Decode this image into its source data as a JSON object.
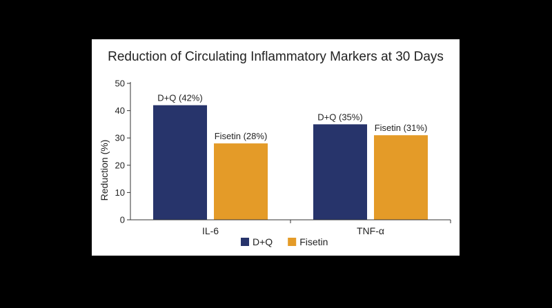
{
  "chart_data": {
    "type": "bar",
    "title": "Reduction of Circulating Inflammatory Markers at 30 Days",
    "xlabel": "",
    "ylabel": "Reduction (%)",
    "categories": [
      "IL-6",
      "TNF-α"
    ],
    "ylim": [
      0,
      50
    ],
    "yticks": [
      0,
      10,
      20,
      30,
      40,
      50
    ],
    "grid": false,
    "legend": "bottom",
    "series": [
      {
        "name": "D+Q",
        "values": [
          42,
          35
        ],
        "color": "#27346b",
        "labels": [
          "D+Q (42%)",
          "D+Q (35%)"
        ]
      },
      {
        "name": "Fisetin",
        "values": [
          28,
          31
        ],
        "color": "#e49b28",
        "labels": [
          "Fisetin (28%)",
          "Fisetin (31%)"
        ]
      }
    ]
  }
}
